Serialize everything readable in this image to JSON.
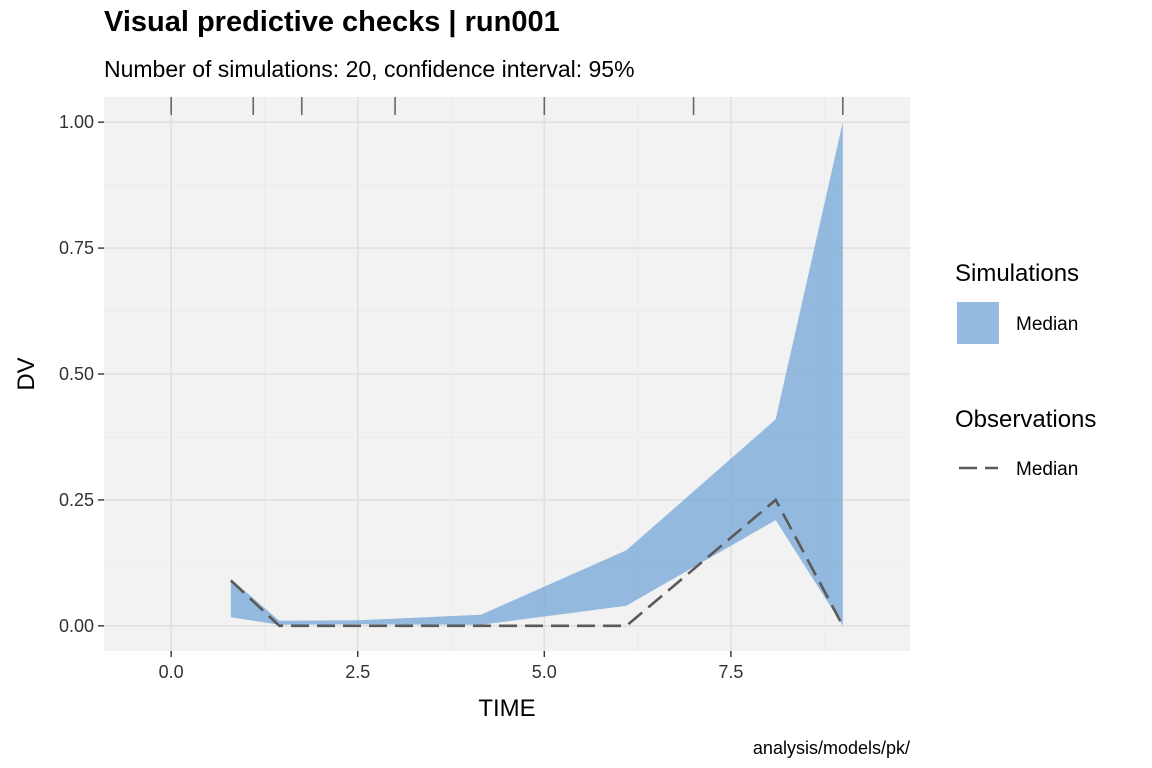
{
  "chart_data": {
    "type": "area",
    "title": "Visual predictive checks | run001",
    "subtitle": "Number of simulations: 20, confidence interval: 95%",
    "xlabel": "TIME",
    "ylabel": "DV",
    "caption": "analysis/models/pk/",
    "xlim": [
      -0.9,
      9.9
    ],
    "ylim": [
      -0.05,
      1.05
    ],
    "x_ticks": [
      0,
      2.5,
      5,
      7.5
    ],
    "x_tick_labels": [
      "0.0",
      "2.5",
      "5.0",
      "7.5"
    ],
    "y_ticks": [
      0,
      0.25,
      0.5,
      0.75,
      1
    ],
    "y_tick_labels": [
      "0.00",
      "0.25",
      "0.50",
      "0.75",
      "1.00"
    ],
    "grid": true,
    "bin_separators": [
      0,
      1.1,
      1.75,
      3,
      5,
      7,
      9
    ],
    "simulation_band": {
      "x": [
        0.8,
        1.45,
        2.5,
        4.15,
        6.1,
        8.1,
        9
      ],
      "lower": [
        0.017,
        0.002,
        0.003,
        0.002,
        0.04,
        0.21,
        0.0
      ],
      "upper": [
        0.093,
        0.01,
        0.011,
        0.022,
        0.15,
        0.41,
        1.0
      ]
    },
    "observed_median": {
      "x": [
        0.8,
        1.45,
        2.5,
        4.15,
        6.1,
        8.1,
        9
      ],
      "y": [
        0.09,
        0.0,
        0.0,
        0.0,
        0.0,
        0.25,
        0.0
      ]
    },
    "legend": {
      "placement": "right",
      "groups": [
        {
          "title": "Simulations",
          "items": [
            {
              "label": "Median",
              "kind": "band"
            }
          ]
        },
        {
          "title": "Observations",
          "items": [
            {
              "label": "Median",
              "kind": "dashed-line"
            }
          ]
        }
      ]
    },
    "colors": {
      "panel_background": "#f2f2f2",
      "grid": "#e0e0e0",
      "band": "#7aaad8",
      "observed_line": "#5a5a5a",
      "separator": "#666666"
    }
  }
}
